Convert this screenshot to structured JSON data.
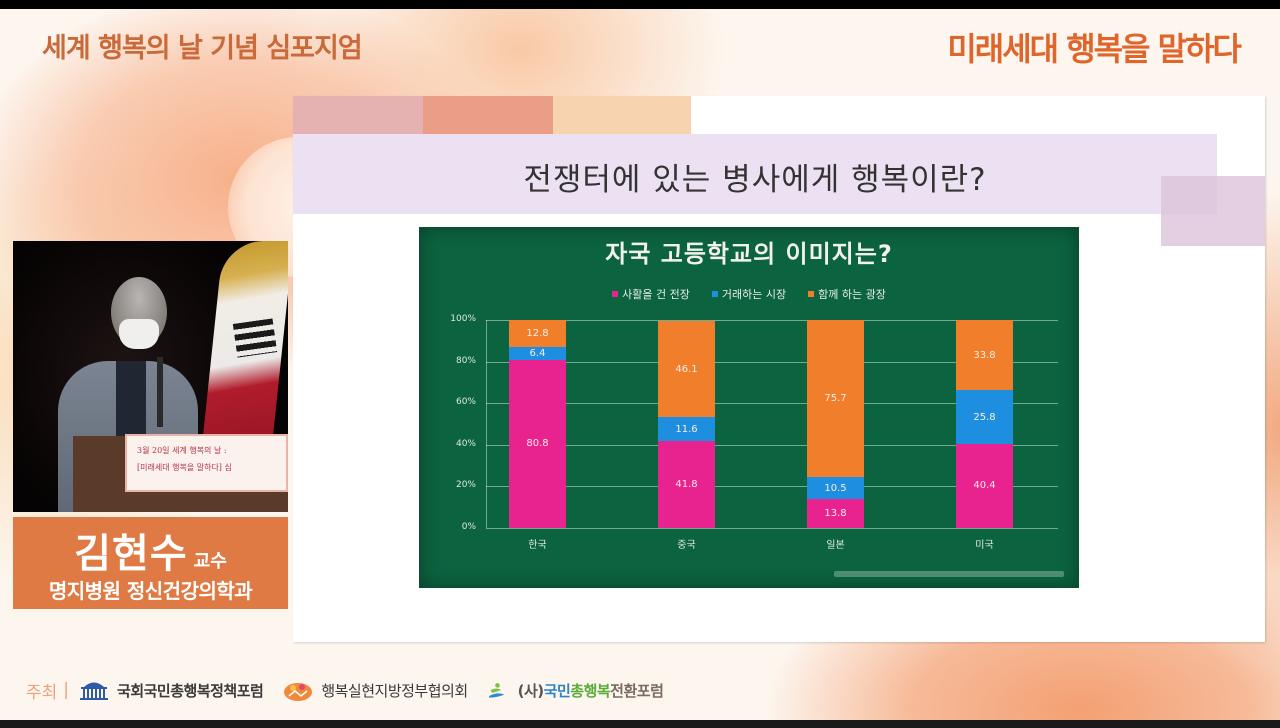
{
  "header": {
    "event_title": "세계 행복의 날 기념 심포지엄",
    "slogan": "미래세대 행복을 말하다"
  },
  "slide": {
    "title": "전쟁터에 있는 병사에게 행복이란?"
  },
  "chart_data": {
    "type": "bar",
    "stacked": true,
    "title": "자국 고등학교의 이미지는?",
    "categories": [
      "한국",
      "중국",
      "일본",
      "미국"
    ],
    "series": [
      {
        "name": "사활을 건 전장",
        "color": "#e8238f",
        "values": [
          80.8,
          41.8,
          13.8,
          40.4
        ]
      },
      {
        "name": "거래하는 시장",
        "color": "#1e8fe0",
        "values": [
          6.4,
          11.6,
          10.5,
          25.8
        ]
      },
      {
        "name": "함께 하는 광장",
        "color": "#f07e2a",
        "values": [
          12.8,
          46.1,
          75.7,
          33.8
        ]
      }
    ],
    "yticks": [
      "0%",
      "20%",
      "40%",
      "60%",
      "80%",
      "100%"
    ],
    "ylim": [
      0,
      100
    ],
    "xlabel": "",
    "ylabel": "",
    "grid": true,
    "legend_position": "top",
    "background_color": "#0c6340"
  },
  "speaker": {
    "name": "김현수",
    "title": "교수",
    "affiliation": "명지병원 정신건강의학과",
    "podium_sign": [
      "3월 20일 세계 행복의 날 :",
      "[미래세대 행복을 말하다] 심"
    ]
  },
  "footer": {
    "hosts_label": "주최",
    "separator": "|",
    "hosts": [
      {
        "name": "국회국민총행복정책포럼",
        "icon": "national-assembly-icon"
      },
      {
        "name": "행복실현지방정부협의회",
        "icon": "happiness-council-icon"
      },
      {
        "name_parts": [
          "(사)",
          "국민",
          "총행복",
          "전환포럼"
        ],
        "icon": "happiness-forum-icon"
      }
    ]
  },
  "colors": {
    "accent_orange": "#e07a45",
    "slogan_orange": "#e0652b",
    "title_brown": "#c96a3a"
  }
}
